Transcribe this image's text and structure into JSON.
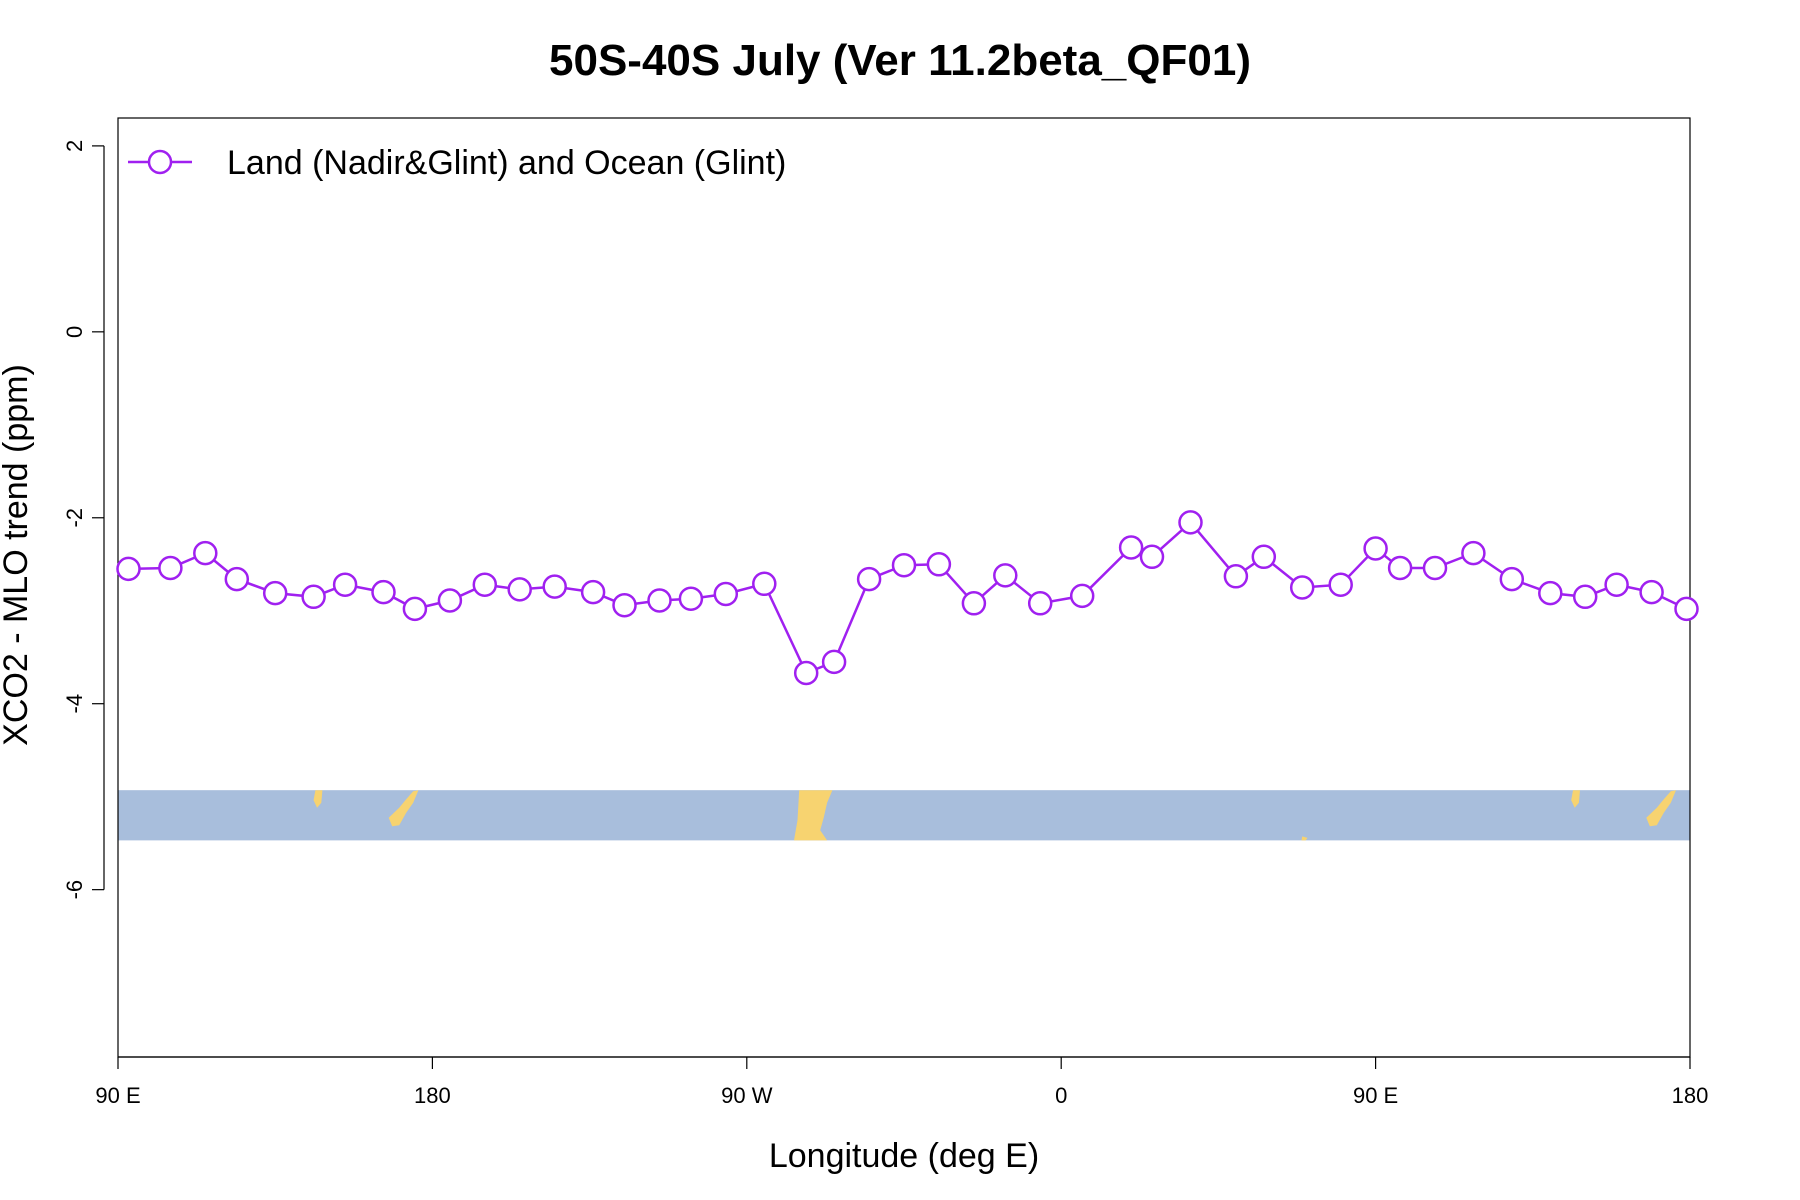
{
  "chart_data": {
    "type": "line",
    "title": "50S-40S July (Ver 11.2beta_QF01)",
    "xlabel": "Longitude (deg E)",
    "ylabel": "XCO2 - MLO trend (ppm)",
    "xlim": [
      90,
      540
    ],
    "ylim": [
      -7.8,
      2.3
    ],
    "x_ticks": [
      {
        "value": 90,
        "label": "90 E"
      },
      {
        "value": 180,
        "label": "180"
      },
      {
        "value": 270,
        "label": "90 W"
      },
      {
        "value": 360,
        "label": "0"
      },
      {
        "value": 450,
        "label": "90 E"
      },
      {
        "value": 540,
        "label": "180"
      }
    ],
    "y_ticks": [
      {
        "value": 2,
        "label": "2"
      },
      {
        "value": 0,
        "label": "0"
      },
      {
        "value": -2,
        "label": "-2"
      },
      {
        "value": -4,
        "label": "-4"
      },
      {
        "value": -6,
        "label": "-6"
      }
    ],
    "legend": {
      "position": "top-left",
      "label": "Land (Nadir&Glint) and Ocean (Glint)"
    },
    "colors": {
      "series": "#a020f0",
      "ocean": "#a8bedc",
      "land": "#f7d370"
    },
    "map_strip": {
      "lat_range": "50S-40S",
      "y_top": -4.93,
      "y_bottom": -5.47
    },
    "series": [
      {
        "name": "Land (Nadir&Glint) and Ocean (Glint)",
        "x": [
          93,
          105,
          115,
          124,
          135,
          146,
          155,
          166,
          175,
          185,
          195,
          205,
          215,
          226,
          235,
          245,
          254,
          264,
          275,
          287,
          295,
          305,
          315,
          325,
          335,
          344,
          354,
          366,
          380,
          386,
          397,
          410,
          418,
          429,
          440,
          450,
          457,
          467,
          478,
          489,
          500,
          510,
          519,
          529,
          539
        ],
        "y": [
          -2.55,
          -2.54,
          -2.38,
          -2.66,
          -2.81,
          -2.85,
          -2.72,
          -2.8,
          -2.98,
          -2.89,
          -2.72,
          -2.77,
          -2.74,
          -2.8,
          -2.94,
          -2.89,
          -2.87,
          -2.82,
          -2.71,
          -3.67,
          -3.55,
          -2.66,
          -2.51,
          -2.5,
          -2.92,
          -2.62,
          -2.92,
          -2.84,
          -2.32,
          -2.42,
          -2.05,
          -2.63,
          -2.42,
          -2.75,
          -2.72,
          -2.33,
          -2.54,
          -2.54,
          -2.38,
          -2.66,
          -2.81,
          -2.85,
          -2.72,
          -2.8,
          -2.98
        ]
      }
    ]
  }
}
